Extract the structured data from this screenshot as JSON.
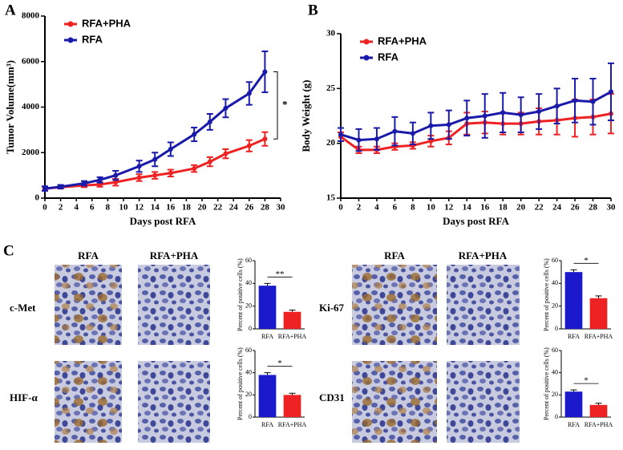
{
  "panel_labels": [
    "A",
    "B",
    "C"
  ],
  "ihc_column_headers": [
    "RFA",
    "RFA+PHA"
  ],
  "chart_data": [
    {
      "type": "line",
      "x_label": "Days post RFA",
      "y_label": "Tumor Volume(mm³)",
      "x": [
        0,
        2,
        5,
        7,
        9,
        12,
        14,
        16,
        19,
        21,
        23,
        26,
        28
      ],
      "series": [
        {
          "name": "RFA+PHA",
          "color": "#ee2222",
          "values": [
            420,
            480,
            560,
            600,
            700,
            900,
            1000,
            1100,
            1300,
            1600,
            1950,
            2300,
            2600
          ],
          "errors": [
            80,
            60,
            80,
            100,
            150,
            150,
            150,
            150,
            150,
            200,
            200,
            250,
            300
          ]
        },
        {
          "name": "RFA",
          "color": "#1a1aaa",
          "values": [
            420,
            500,
            650,
            800,
            1000,
            1400,
            1700,
            2150,
            2800,
            3350,
            3950,
            4600,
            5550
          ],
          "errors": [
            100,
            80,
            100,
            120,
            200,
            250,
            300,
            300,
            300,
            350,
            400,
            500,
            900
          ]
        }
      ],
      "xlim": [
        0,
        30
      ],
      "xticks": [
        0,
        2,
        4,
        6,
        8,
        10,
        12,
        14,
        16,
        18,
        20,
        22,
        24,
        26,
        28,
        30
      ],
      "ylim": [
        0,
        8000
      ],
      "yticks": [
        0,
        2000,
        4000,
        6000,
        8000
      ],
      "legend": "upper left",
      "significance": "*"
    },
    {
      "type": "line",
      "x_label": "Days post RFA",
      "y_label": "Body Weight (g)",
      "x": [
        0,
        2,
        4,
        6,
        8,
        10,
        12,
        14,
        16,
        18,
        20,
        22,
        24,
        26,
        28,
        30
      ],
      "series": [
        {
          "name": "RFA+PHA",
          "color": "#ee2222",
          "values": [
            20.6,
            19.4,
            19.4,
            19.7,
            19.8,
            20.2,
            20.5,
            21.8,
            21.9,
            21.8,
            21.8,
            22.0,
            22.1,
            22.3,
            22.4,
            22.7
          ],
          "errors": [
            0.4,
            0.3,
            0.3,
            0.3,
            0.3,
            0.5,
            0.6,
            1,
            1,
            1,
            1,
            1.2,
            1.3,
            1.7,
            1.6,
            1.8
          ]
        },
        {
          "name": "RFA",
          "color": "#1a1aaa",
          "values": [
            20.8,
            20.3,
            20.4,
            21.1,
            20.9,
            21.6,
            21.7,
            22.3,
            22.5,
            22.8,
            22.6,
            22.9,
            23.4,
            23.9,
            23.8,
            24.7
          ],
          "errors": [
            0.6,
            1,
            1,
            1.3,
            1,
            1.2,
            1.3,
            1.6,
            2,
            1.8,
            1.6,
            1.6,
            1.6,
            2,
            2.1,
            2.6
          ]
        }
      ],
      "xlim": [
        0,
        30
      ],
      "xticks": [
        0,
        2,
        4,
        6,
        8,
        10,
        12,
        14,
        16,
        18,
        20,
        22,
        24,
        26,
        28,
        30
      ],
      "ylim": [
        15,
        30
      ],
      "yticks": [
        15,
        20,
        25,
        30
      ],
      "legend": "upper left"
    },
    {
      "type": "bar",
      "title": "c-Met",
      "categories": [
        "RFA",
        "RFA+PHA"
      ],
      "values": [
        38,
        15
      ],
      "errors": [
        2,
        1.5
      ],
      "colors": [
        "#1a1acc",
        "#ee2222"
      ],
      "ylim": [
        0,
        60
      ],
      "yticks": [
        0,
        20,
        40,
        60
      ],
      "y_label": "Percent of positive cells (%)",
      "significance": "**"
    },
    {
      "type": "bar",
      "title": "Ki-67",
      "categories": [
        "RFA",
        "RFA+PHA"
      ],
      "values": [
        50,
        27
      ],
      "errors": [
        2,
        2
      ],
      "colors": [
        "#1a1acc",
        "#ee2222"
      ],
      "ylim": [
        0,
        60
      ],
      "yticks": [
        0,
        20,
        40,
        60
      ],
      "y_label": "Percent of positive cells (%)",
      "significance": "*"
    },
    {
      "type": "bar",
      "title": "HIF-α",
      "categories": [
        "RFA",
        "RFA+PHA"
      ],
      "values": [
        38,
        20
      ],
      "errors": [
        2,
        1.5
      ],
      "colors": [
        "#1a1acc",
        "#ee2222"
      ],
      "ylim": [
        0,
        60
      ],
      "yticks": [
        0,
        20,
        40,
        60
      ],
      "y_label": "Percent of positive cells (%)",
      "significance": "*"
    },
    {
      "type": "bar",
      "title": "CD31",
      "categories": [
        "RFA",
        "RFA+PHA"
      ],
      "values": [
        23,
        11
      ],
      "errors": [
        1.5,
        1.5
      ],
      "colors": [
        "#1a1acc",
        "#ee2222"
      ],
      "ylim": [
        0,
        60
      ],
      "yticks": [
        0,
        20,
        40,
        60
      ],
      "y_label": "Percent of positive cells (%)",
      "significance": "*"
    }
  ]
}
